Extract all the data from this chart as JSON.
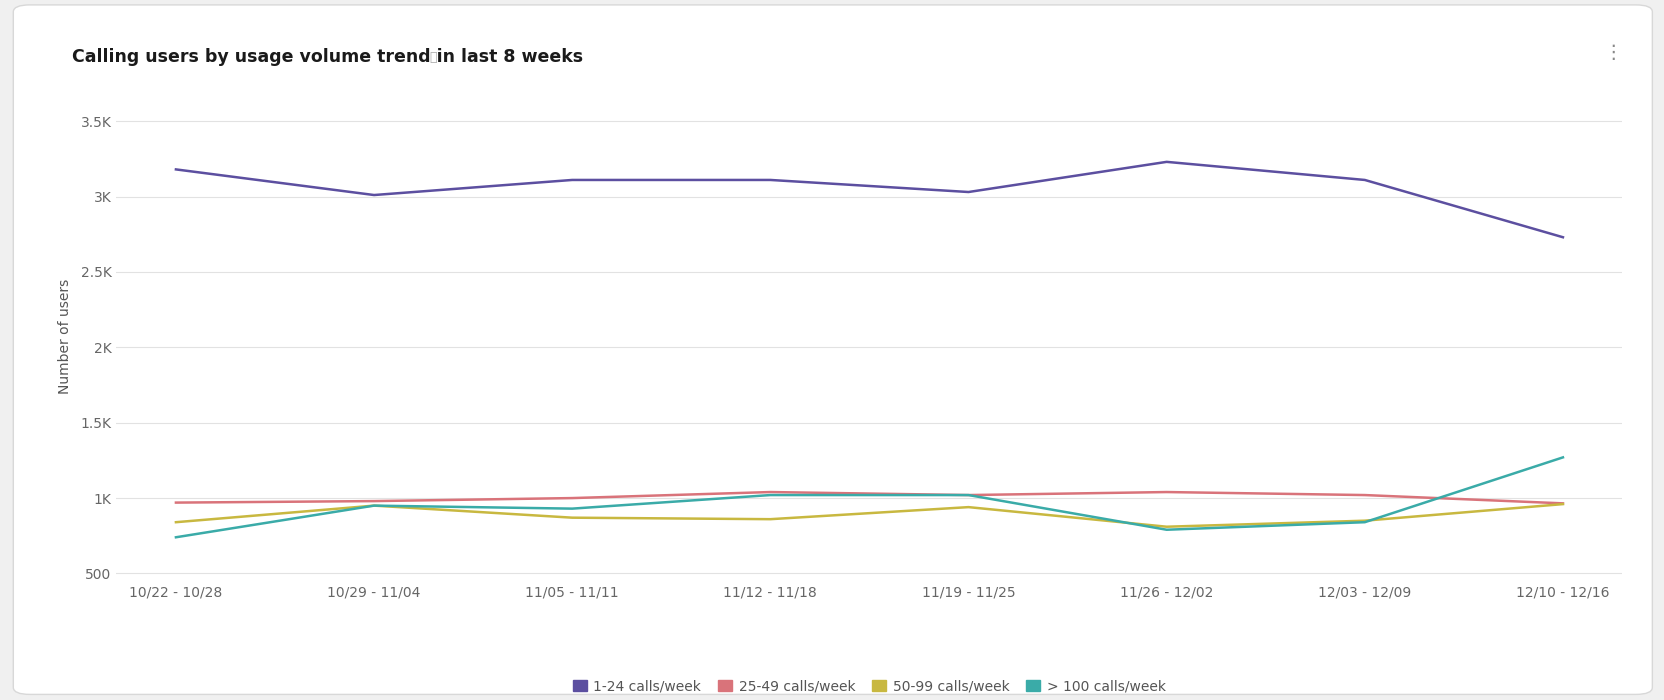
{
  "title": "Calling users by usage volume trend in last 8 weeks",
  "ylabel": "Number of users",
  "x_labels": [
    "10/22 - 10/28",
    "10/29 - 11/04",
    "11/05 - 11/11",
    "11/12 - 11/18",
    "11/19 - 11/25",
    "11/26 - 12/02",
    "12/03 - 12/09",
    "12/10 - 12/16"
  ],
  "series": [
    {
      "label": "1-24 calls/week",
      "color": "#5c4fa0",
      "values": [
        3180,
        3010,
        3110,
        3110,
        3030,
        3230,
        3110,
        2730
      ]
    },
    {
      "label": "25-49 calls/week",
      "color": "#d9737a",
      "values": [
        970,
        980,
        1000,
        1040,
        1020,
        1040,
        1020,
        965
      ]
    },
    {
      "label": "50-99 calls/week",
      "color": "#c8b840",
      "values": [
        840,
        950,
        870,
        860,
        940,
        810,
        850,
        960
      ]
    },
    {
      "label": "> 100 calls/week",
      "color": "#3aaba8",
      "values": [
        740,
        950,
        930,
        1020,
        1020,
        790,
        840,
        1270
      ]
    }
  ],
  "ylim": [
    450,
    3700
  ],
  "yticks": [
    500,
    1000,
    1500,
    2000,
    2500,
    3000,
    3500
  ],
  "ytick_labels": [
    "500",
    "1K",
    "1.5K",
    "2K",
    "2.5K",
    "3K",
    "3.5K"
  ],
  "outer_bg": "#f0f0f0",
  "card_bg": "#ffffff",
  "grid_color": "#e2e2e2",
  "title_fontsize": 12.5,
  "axis_label_fontsize": 10,
  "tick_fontsize": 10,
  "legend_fontsize": 10,
  "line_width": 1.8
}
